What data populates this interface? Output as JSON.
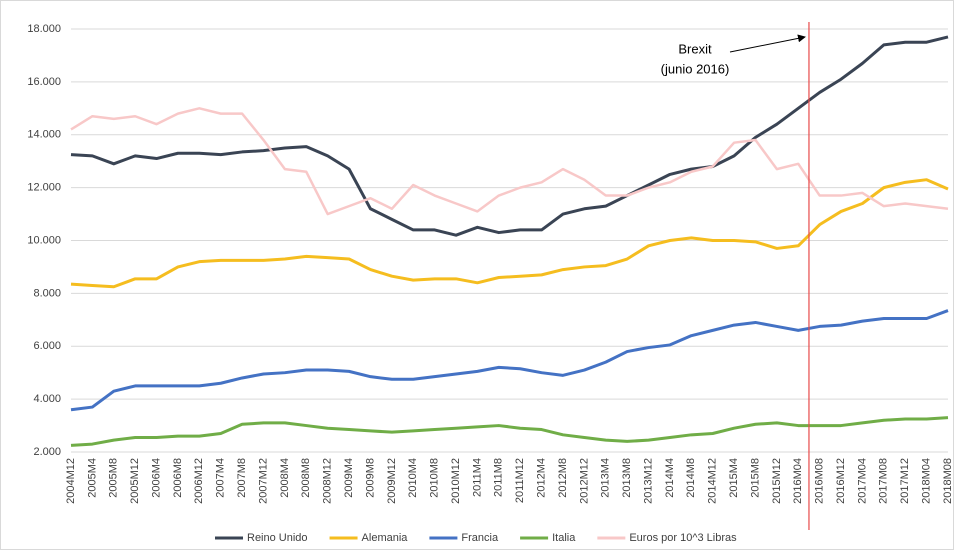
{
  "chart_data": {
    "type": "line",
    "categories": [
      "2004M12",
      "2005M4",
      "2005M8",
      "2005M12",
      "2006M4",
      "2006M8",
      "2006M12",
      "2007M4",
      "2007M8",
      "2007M12",
      "2008M4",
      "2008M8",
      "2008M12",
      "2009M4",
      "2009M8",
      "2009M12",
      "2010M4",
      "2010M8",
      "2010M12",
      "2011M4",
      "2011M8",
      "2011M12",
      "2012M4",
      "2012M8",
      "2012M12",
      "2013M4",
      "2013M8",
      "2013M12",
      "2014M4",
      "2014M8",
      "2014M12",
      "2015M4",
      "2015M8",
      "2015M12",
      "2016M04",
      "2016M08",
      "2016M12",
      "2017M04",
      "2017M08",
      "2017M12",
      "2018M04",
      "2018M08"
    ],
    "series": [
      {
        "name": "Reino Unido",
        "color": "#3a4454",
        "values": [
          13250,
          13200,
          12900,
          13200,
          13100,
          13300,
          13300,
          13250,
          13350,
          13400,
          13500,
          13550,
          13200,
          12700,
          11200,
          10800,
          10400,
          10400,
          10200,
          10500,
          10300,
          10400,
          10400,
          11000,
          11200,
          11300,
          11700,
          12100,
          12500,
          12700,
          12800,
          13200,
          13900,
          14400,
          15000,
          15600,
          16100,
          16700,
          17400,
          17500,
          17500,
          17700
        ]
      },
      {
        "name": "Alemania",
        "color": "#f5bd1f",
        "values": [
          8350,
          8300,
          8250,
          8550,
          8550,
          9000,
          9200,
          9250,
          9250,
          9250,
          9300,
          9400,
          9350,
          9300,
          8900,
          8650,
          8500,
          8550,
          8550,
          8400,
          8600,
          8650,
          8700,
          8900,
          9000,
          9050,
          9300,
          9800,
          10000,
          10100,
          10000,
          10000,
          9950,
          9700,
          9800,
          10600,
          11100,
          11400,
          12000,
          12200,
          12300,
          11950
        ]
      },
      {
        "name": "Francia",
        "color": "#4472c4",
        "values": [
          3600,
          3700,
          4300,
          4500,
          4500,
          4500,
          4500,
          4600,
          4800,
          4950,
          5000,
          5100,
          5100,
          5050,
          4850,
          4750,
          4750,
          4850,
          4950,
          5050,
          5200,
          5150,
          5000,
          4900,
          5100,
          5400,
          5800,
          5950,
          6050,
          6400,
          6600,
          6800,
          6900,
          6750,
          6600,
          6750,
          6800,
          6950,
          7050,
          7050,
          7050,
          7350
        ]
      },
      {
        "name": "Italia",
        "color": "#70ad47",
        "values": [
          2250,
          2300,
          2450,
          2550,
          2550,
          2600,
          2600,
          2700,
          3050,
          3100,
          3100,
          3000,
          2900,
          2850,
          2800,
          2750,
          2800,
          2850,
          2900,
          2950,
          3000,
          2900,
          2850,
          2650,
          2550,
          2450,
          2400,
          2450,
          2550,
          2650,
          2700,
          2900,
          3050,
          3100,
          3000,
          3000,
          3000,
          3100,
          3200,
          3250,
          3250,
          3300
        ]
      },
      {
        "name": "Euros por 10^3 Libras",
        "color": "#f8c8c8",
        "values": [
          14200,
          14700,
          14600,
          14700,
          14400,
          14800,
          15000,
          14800,
          14800,
          13800,
          12700,
          12600,
          11000,
          11300,
          11600,
          11200,
          12100,
          11700,
          11400,
          11100,
          11700,
          12000,
          12200,
          12700,
          12300,
          11700,
          11700,
          12000,
          12200,
          12600,
          12800,
          13700,
          13800,
          12700,
          12900,
          11700,
          11700,
          11800,
          11300,
          11400,
          11300,
          11200
        ]
      }
    ],
    "ylim": [
      2000,
      18000
    ],
    "yticks": [
      {
        "value": 2000,
        "label": "2.000"
      },
      {
        "value": 4000,
        "label": "4.000"
      },
      {
        "value": 6000,
        "label": "6.000"
      },
      {
        "value": 8000,
        "label": "8.000"
      },
      {
        "value": 10000,
        "label": "10.000"
      },
      {
        "value": 12000,
        "label": "12.000"
      },
      {
        "value": 14000,
        "label": "14.000"
      },
      {
        "value": 16000,
        "label": "16.000"
      },
      {
        "value": 18000,
        "label": "18.000"
      }
    ],
    "grid": true,
    "annotation": [
      "Brexit",
      "(junio 2016)"
    ],
    "legend": "bottom"
  }
}
